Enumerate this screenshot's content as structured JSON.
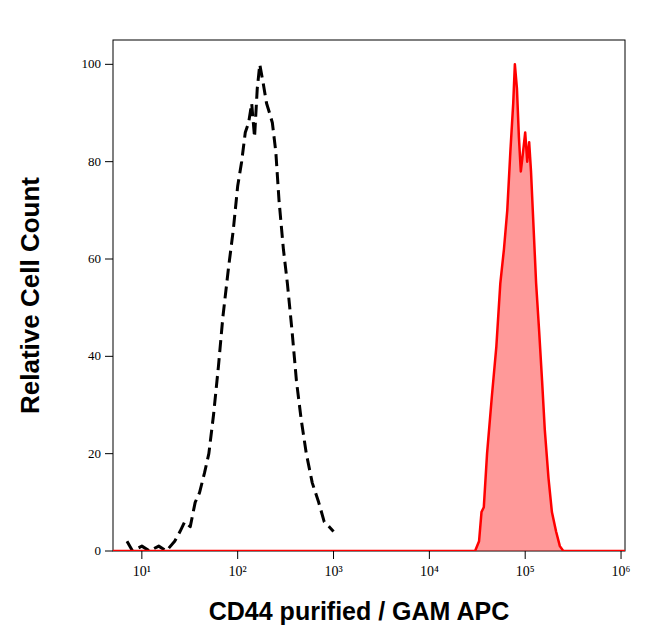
{
  "chart_data": {
    "type": "line",
    "xlabel": "CD44 purified / GAM APC",
    "ylabel": "Relative Cell Count",
    "log": "x",
    "grid": false,
    "xlim": [
      5,
      1100000
    ],
    "ylim": [
      0,
      105
    ],
    "xticks": [
      {
        "value": 10,
        "label": "10¹"
      },
      {
        "value": 100,
        "label": "10²"
      },
      {
        "value": 1000,
        "label": "10³"
      },
      {
        "value": 10000,
        "label": "10⁴"
      },
      {
        "value": 100000,
        "label": "10⁵"
      },
      {
        "value": 1000000,
        "label": "10⁶"
      }
    ],
    "yticks": [
      0,
      20,
      40,
      60,
      80,
      100
    ],
    "series": [
      {
        "color": "#000000",
        "line_style": "dashed",
        "type": "line",
        "x": [
          7,
          8,
          10,
          12,
          15,
          18,
          22,
          25,
          28,
          32,
          36,
          40,
          45,
          50,
          56,
          63,
          70,
          80,
          90,
          100,
          110,
          120,
          130,
          140,
          150,
          160,
          170,
          185,
          200,
          215,
          230,
          250,
          270,
          300,
          330,
          370,
          410,
          460,
          520,
          600,
          700,
          800,
          900,
          1000
        ],
        "values": [
          2,
          0,
          1,
          0,
          1,
          0,
          2,
          4,
          6,
          5,
          10,
          12,
          16,
          20,
          28,
          38,
          48,
          58,
          66,
          75,
          80,
          86,
          88,
          92,
          85,
          95,
          100,
          96,
          92,
          90,
          88,
          82,
          72,
          62,
          55,
          45,
          35,
          27,
          20,
          14,
          10,
          6,
          5,
          4
        ]
      },
      {
        "color": "#ff0000",
        "line_style": "solid",
        "type": "area",
        "x": [
          5,
          30000,
          33000,
          35000,
          37000,
          40000,
          45000,
          50000,
          55000,
          60000,
          65000,
          70000,
          75000,
          78000,
          82000,
          86000,
          90000,
          95000,
          100000,
          105000,
          110000,
          115000,
          120000,
          130000,
          140000,
          150000,
          160000,
          175000,
          190000,
          210000,
          230000,
          250000,
          1100000
        ],
        "values": [
          0,
          0,
          2,
          8,
          9,
          20,
          32,
          42,
          55,
          62,
          70,
          82,
          92,
          100,
          95,
          85,
          78,
          82,
          86,
          80,
          84,
          78,
          70,
          55,
          45,
          35,
          25,
          15,
          8,
          4,
          1,
          0,
          0
        ]
      }
    ]
  }
}
